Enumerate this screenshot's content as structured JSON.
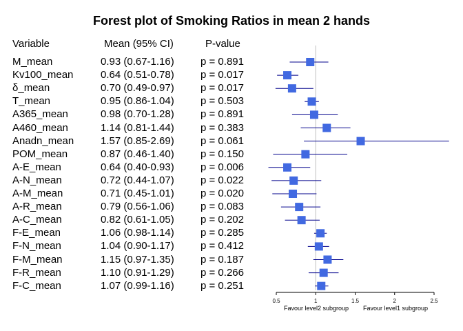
{
  "chart_data": {
    "type": "forest",
    "title": "Forest plot of Smoking Ratios in mean 2 hands",
    "columns": {
      "variable": "Variable",
      "mean": "Mean (95% CI)",
      "p": "P-value"
    },
    "rows": [
      {
        "variable": "M_mean",
        "mean_ci": "0.93 (0.67-1.16)",
        "p": "p = 0.891",
        "est": 0.93,
        "lo": 0.67,
        "hi": 1.16
      },
      {
        "variable": "Kv100_mean",
        "mean_ci": "0.64 (0.51-0.78)",
        "p": "p = 0.017",
        "est": 0.64,
        "lo": 0.51,
        "hi": 0.78
      },
      {
        "variable": "δ_mean",
        "mean_ci": "0.70 (0.49-0.97)",
        "p": "p = 0.017",
        "est": 0.7,
        "lo": 0.49,
        "hi": 0.97
      },
      {
        "variable": "T_mean",
        "mean_ci": "0.95 (0.86-1.04)",
        "p": "p = 0.503",
        "est": 0.95,
        "lo": 0.86,
        "hi": 1.04
      },
      {
        "variable": "A365_mean",
        "mean_ci": "0.98 (0.70-1.28)",
        "p": "p = 0.891",
        "est": 0.98,
        "lo": 0.7,
        "hi": 1.28
      },
      {
        "variable": "A460_mean",
        "mean_ci": "1.14 (0.81-1.44)",
        "p": "p = 0.383",
        "est": 1.14,
        "lo": 0.81,
        "hi": 1.44
      },
      {
        "variable": "Anadn_mean",
        "mean_ci": "1.57 (0.85-2.69)",
        "p": "p = 0.061",
        "est": 1.57,
        "lo": 0.85,
        "hi": 2.69
      },
      {
        "variable": "POM_mean",
        "mean_ci": "0.87 (0.46-1.40)",
        "p": "p = 0.150",
        "est": 0.87,
        "lo": 0.46,
        "hi": 1.4
      },
      {
        "variable": "A-E_mean",
        "mean_ci": "0.64 (0.40-0.93)",
        "p": "p = 0.006",
        "est": 0.64,
        "lo": 0.4,
        "hi": 0.93
      },
      {
        "variable": "A-N_mean",
        "mean_ci": "0.72 (0.44-1.07)",
        "p": "p = 0.022",
        "est": 0.72,
        "lo": 0.44,
        "hi": 1.07
      },
      {
        "variable": "A-M_mean",
        "mean_ci": "0.71 (0.45-1.01)",
        "p": "p = 0.020",
        "est": 0.71,
        "lo": 0.45,
        "hi": 1.01
      },
      {
        "variable": "A-R_mean",
        "mean_ci": "0.79 (0.56-1.06)",
        "p": "p = 0.083",
        "est": 0.79,
        "lo": 0.56,
        "hi": 1.06
      },
      {
        "variable": "A-C_mean",
        "mean_ci": "0.82 (0.61-1.05)",
        "p": "p = 0.202",
        "est": 0.82,
        "lo": 0.61,
        "hi": 1.05
      },
      {
        "variable": "F-E_mean",
        "mean_ci": "1.06 (0.98-1.14)",
        "p": "p = 0.285",
        "est": 1.06,
        "lo": 0.98,
        "hi": 1.14
      },
      {
        "variable": "F-N_mean",
        "mean_ci": "1.04 (0.90-1.17)",
        "p": "p = 0.412",
        "est": 1.04,
        "lo": 0.9,
        "hi": 1.17
      },
      {
        "variable": "F-M_mean",
        "mean_ci": "1.15 (0.97-1.35)",
        "p": "p = 0.187",
        "est": 1.15,
        "lo": 0.97,
        "hi": 1.35
      },
      {
        "variable": "F-R_mean",
        "mean_ci": "1.10 (0.91-1.29)",
        "p": "p = 0.266",
        "est": 1.1,
        "lo": 0.91,
        "hi": 1.29
      },
      {
        "variable": "F-C_mean",
        "mean_ci": "1.07 (0.99-1.16)",
        "p": "p = 0.251",
        "est": 1.07,
        "lo": 0.99,
        "hi": 1.16
      }
    ],
    "x_ticks": [
      0.5,
      1,
      1.5,
      2,
      2.5
    ],
    "x_tick_labels": [
      "0.5",
      "1",
      "1.5",
      "2",
      "2.5"
    ],
    "xlim": [
      0.5,
      2.5
    ],
    "reference_line": 1,
    "xlabel_left": "Favour level2 subgroup",
    "xlabel_right": "Favour level1 subgroup",
    "colors": {
      "box": "#4169E1",
      "ci_line": "#00008B",
      "ref_line": "#BEBEBE",
      "axis": "#000000"
    }
  }
}
